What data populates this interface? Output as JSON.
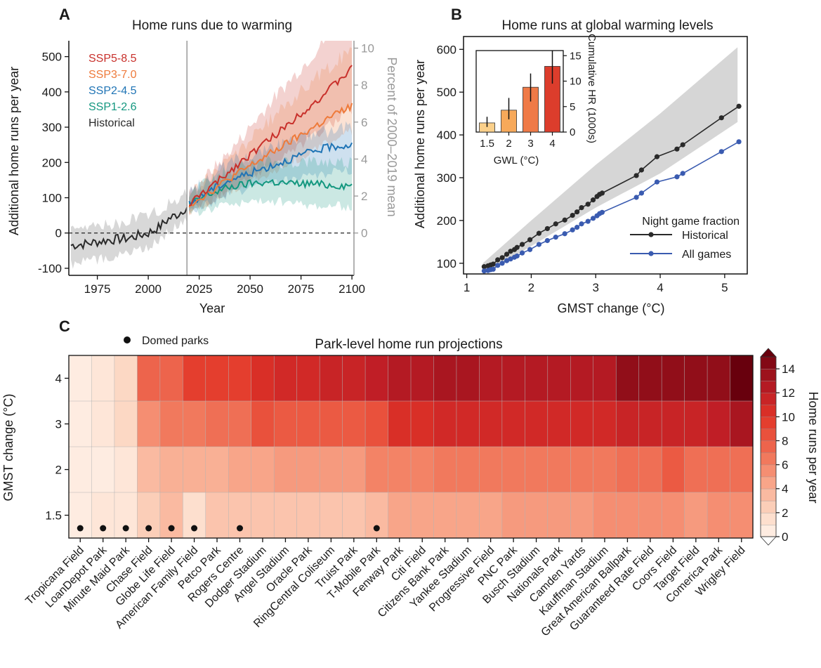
{
  "colors": {
    "ssp585": "#c8302b",
    "ssp370": "#ee7a3a",
    "ssp245": "#1f74b5",
    "ssp126": "#13977f",
    "historical": "#2a2a2a",
    "all_games": "#3a5bb0",
    "band_grey": "#d4d4d4",
    "axis_grey": "#999999"
  },
  "panel_a": {
    "letter": "A",
    "chart_data": {
      "type": "line",
      "title": "Home runs due to warming",
      "xlabel": "Year",
      "ylabel": "Additional home runs per year",
      "ylabel_right": "Percent of 2000–2019 mean",
      "x_ticks": [
        1975,
        2000,
        2025,
        2050,
        2075,
        2100
      ],
      "y_ticks": [
        -100,
        0,
        100,
        200,
        300,
        400,
        500
      ],
      "y_ticks_right": [
        0,
        2,
        4,
        6,
        8,
        10
      ],
      "xlim": [
        1961,
        2101
      ],
      "ylim": [
        -120,
        545
      ],
      "right_ylim": [
        -2.29,
        10.4
      ],
      "divider_year": 2019,
      "legend_position": "top-left",
      "series": [
        {
          "key": "ssp585",
          "name": "SSP5-8.5",
          "anchors": [
            [
              2020,
              80
            ],
            [
              2025,
              105
            ],
            [
              2035,
              150
            ],
            [
              2045,
              200
            ],
            [
              2055,
              245
            ],
            [
              2065,
              290
            ],
            [
              2075,
              340
            ],
            [
              2085,
              385
            ],
            [
              2095,
              440
            ],
            [
              2100,
              465
            ]
          ],
          "band_lo": [
            [
              2020,
              60
            ],
            [
              2040,
              120
            ],
            [
              2060,
              190
            ],
            [
              2080,
              270
            ],
            [
              2100,
              350
            ]
          ],
          "band_hi": [
            [
              2020,
              110
            ],
            [
              2040,
              230
            ],
            [
              2060,
              370
            ],
            [
              2080,
              500
            ],
            [
              2100,
              640
            ]
          ]
        },
        {
          "key": "ssp370",
          "name": "SSP3-7.0",
          "anchors": [
            [
              2020,
              80
            ],
            [
              2030,
              115
            ],
            [
              2040,
              155
            ],
            [
              2050,
              190
            ],
            [
              2060,
              225
            ],
            [
              2070,
              260
            ],
            [
              2080,
              295
            ],
            [
              2090,
              330
            ],
            [
              2100,
              360
            ]
          ],
          "band_lo": [
            [
              2020,
              60
            ],
            [
              2040,
              120
            ],
            [
              2060,
              170
            ],
            [
              2080,
              230
            ],
            [
              2100,
              290
            ]
          ],
          "band_hi": [
            [
              2020,
              110
            ],
            [
              2040,
              210
            ],
            [
              2060,
              320
            ],
            [
              2080,
              430
            ],
            [
              2100,
              520
            ]
          ]
        },
        {
          "key": "ssp245",
          "name": "SSP2-4.5",
          "anchors": [
            [
              2020,
              80
            ],
            [
              2030,
              120
            ],
            [
              2040,
              150
            ],
            [
              2050,
              170
            ],
            [
              2060,
              190
            ],
            [
              2070,
              210
            ],
            [
              2080,
              230
            ],
            [
              2090,
              245
            ],
            [
              2100,
              250
            ]
          ],
          "band_lo": [
            [
              2020,
              60
            ],
            [
              2040,
              110
            ],
            [
              2060,
              140
            ],
            [
              2080,
              160
            ],
            [
              2100,
              180
            ]
          ],
          "band_hi": [
            [
              2020,
              110
            ],
            [
              2040,
              200
            ],
            [
              2060,
              240
            ],
            [
              2080,
              280
            ],
            [
              2100,
              300
            ]
          ]
        },
        {
          "key": "ssp126",
          "name": "SSP1-2.6",
          "anchors": [
            [
              2020,
              80
            ],
            [
              2030,
              110
            ],
            [
              2040,
              130
            ],
            [
              2050,
              140
            ],
            [
              2060,
              145
            ],
            [
              2070,
              140
            ],
            [
              2080,
              140
            ],
            [
              2090,
              135
            ],
            [
              2100,
              135
            ]
          ],
          "band_lo": [
            [
              2020,
              55
            ],
            [
              2040,
              85
            ],
            [
              2060,
              90
            ],
            [
              2080,
              80
            ],
            [
              2100,
              75
            ]
          ],
          "band_hi": [
            [
              2020,
              110
            ],
            [
              2040,
              180
            ],
            [
              2060,
              200
            ],
            [
              2080,
              200
            ],
            [
              2100,
              200
            ]
          ]
        },
        {
          "key": "historical",
          "name": "Historical",
          "anchors": [
            [
              1962,
              -35
            ],
            [
              1970,
              -30
            ],
            [
              1980,
              -20
            ],
            [
              1990,
              -15
            ],
            [
              2000,
              0
            ],
            [
              2005,
              15
            ],
            [
              2010,
              40
            ],
            [
              2015,
              55
            ],
            [
              2019,
              75
            ]
          ],
          "band_lo": [
            [
              1962,
              -90
            ],
            [
              1980,
              -70
            ],
            [
              2000,
              -40
            ],
            [
              2019,
              40
            ]
          ],
          "band_hi": [
            [
              1962,
              0
            ],
            [
              1980,
              20
            ],
            [
              2000,
              50
            ],
            [
              2019,
              110
            ]
          ]
        }
      ]
    }
  },
  "panel_b": {
    "letter": "B",
    "chart_data": {
      "type": "line",
      "title": "Home runs at global warming levels",
      "xlabel": "GMST change (°C)",
      "ylabel": "Additional home runs per year",
      "x_ticks": [
        1,
        2,
        3,
        4,
        5
      ],
      "y_ticks": [
        100,
        200,
        300,
        400,
        500,
        600
      ],
      "xlim": [
        0.95,
        5.35
      ],
      "ylim": [
        75,
        630
      ],
      "legend_title": "Night game fraction",
      "legend_position": "bottom-right",
      "band": {
        "lo": [
          [
            1.25,
            75
          ],
          [
            2,
            140
          ],
          [
            3,
            230
          ],
          [
            4,
            310
          ],
          [
            5.2,
            430
          ]
        ],
        "hi": [
          [
            1.25,
            100
          ],
          [
            2,
            200
          ],
          [
            3,
            330
          ],
          [
            4,
            450
          ],
          [
            5.2,
            605
          ]
        ]
      },
      "series": [
        {
          "key": "historical",
          "name": "Historical",
          "x": [
            1.27,
            1.33,
            1.37,
            1.41,
            1.48,
            1.55,
            1.62,
            1.68,
            1.74,
            1.78,
            1.86,
            1.98,
            2.12,
            2.25,
            2.38,
            2.52,
            2.64,
            2.71,
            2.78,
            2.88,
            2.96,
            3.02,
            3.06,
            3.1,
            3.63,
            3.71,
            3.95,
            4.26,
            4.35,
            4.95,
            5.22
          ],
          "y": [
            92,
            94,
            96,
            98,
            108,
            113,
            121,
            128,
            132,
            137,
            144,
            155,
            170,
            181,
            192,
            201,
            212,
            220,
            230,
            238,
            248,
            256,
            261,
            264,
            305,
            318,
            349,
            367,
            377,
            440,
            467
          ]
        },
        {
          "key": "all_games",
          "name": "All games",
          "x": [
            1.27,
            1.33,
            1.37,
            1.41,
            1.48,
            1.55,
            1.62,
            1.68,
            1.74,
            1.78,
            1.86,
            1.98,
            2.12,
            2.25,
            2.38,
            2.52,
            2.64,
            2.71,
            2.78,
            2.88,
            2.96,
            3.02,
            3.06,
            3.1,
            3.63,
            3.71,
            3.95,
            4.26,
            4.35,
            4.95,
            5.22
          ],
          "y": [
            82,
            83,
            85,
            86,
            95,
            100,
            106,
            110,
            114,
            117,
            124,
            132,
            144,
            153,
            161,
            169,
            178,
            184,
            192,
            198,
            205,
            211,
            216,
            219,
            254,
            264,
            290,
            302,
            310,
            361,
            384
          ]
        }
      ],
      "inset": {
        "type": "bar",
        "xlabel": "GWL (°C)",
        "ylabel": "Cumulative HR (1000s)",
        "categories": [
          "1.5",
          "2",
          "3",
          "4"
        ],
        "values": [
          1.8,
          4.3,
          8.8,
          12.9
        ],
        "err_lo": [
          1.0,
          2.5,
          6.0,
          9.5
        ],
        "err_hi": [
          3.0,
          6.7,
          11.5,
          16.0
        ],
        "colors": [
          "#fbd08a",
          "#f7a95a",
          "#ef7a47",
          "#dc3d2c"
        ],
        "y_ticks": [
          0,
          5,
          10,
          15
        ],
        "ylim": [
          0,
          16
        ]
      }
    }
  },
  "panel_c": {
    "letter": "C",
    "chart_data": {
      "type": "heatmap",
      "title": "Park-level home run projections",
      "ylabel": "GMST change (°C)",
      "colorbar_label": "Home runs per year",
      "colorbar_ticks": [
        0,
        2,
        4,
        6,
        8,
        10,
        12,
        14
      ],
      "legend_label": "Domed parks",
      "rows": [
        "4",
        "3",
        "2",
        "1.5"
      ],
      "columns": [
        "Tropicana Field",
        "LoanDepot Park",
        "Minute Maid Park",
        "Chase Field",
        "Globe Life Field",
        "American Family Field",
        "Petco Park",
        "Rogers Centre",
        "Dodger Stadium",
        "Angel Stadium",
        "Oracle Park",
        "RingCentral Coliseum",
        "Truist Park",
        "T-Mobile Park",
        "Fenway Park",
        "Citi Field",
        "Citizens Bank Park",
        "Yankee Stadium",
        "Progressive Field",
        "PNC Park",
        "Busch Stadium",
        "Nationals Park",
        "Camden Yards",
        "Kauffman Stadium",
        "Great American Ballpark",
        "Guaranteed Rate Field",
        "Coors Field",
        "Target Field",
        "Comerica Park",
        "Wrigley Field"
      ],
      "domed": [
        true,
        true,
        true,
        true,
        true,
        true,
        false,
        true,
        false,
        false,
        false,
        false,
        false,
        true,
        false,
        false,
        false,
        false,
        false,
        false,
        false,
        false,
        false,
        false,
        false,
        false,
        false,
        false,
        false,
        false
      ],
      "values": [
        [
          0.5,
          1.0,
          2.0,
          7.5,
          7.5,
          9.5,
          9.5,
          9.5,
          10.5,
          11.0,
          11.0,
          11.5,
          11.5,
          12.0,
          12.5,
          12.5,
          13.0,
          13.0,
          12.5,
          12.5,
          12.5,
          12.5,
          12.5,
          12.5,
          14.0,
          14.0,
          14.0,
          14.0,
          14.0,
          15.5
        ],
        [
          0.5,
          1.0,
          2.0,
          5.5,
          6.5,
          6.5,
          7.0,
          7.0,
          8.5,
          8.0,
          8.0,
          8.0,
          8.0,
          8.5,
          10.5,
          10.5,
          11.0,
          11.0,
          11.0,
          11.0,
          11.0,
          11.0,
          11.0,
          11.0,
          11.5,
          11.5,
          11.5,
          11.5,
          12.0,
          13.0
        ],
        [
          0.5,
          0.5,
          1.0,
          3.5,
          4.0,
          4.0,
          4.0,
          4.5,
          4.5,
          5.0,
          5.0,
          5.0,
          5.0,
          6.0,
          6.0,
          6.0,
          6.5,
          6.5,
          6.5,
          6.5,
          6.5,
          6.5,
          6.5,
          6.5,
          7.0,
          7.0,
          8.0,
          7.0,
          7.0,
          7.0
        ],
        [
          0.5,
          1.0,
          1.0,
          2.5,
          3.5,
          1.5,
          3.0,
          3.0,
          3.0,
          3.0,
          3.0,
          3.0,
          3.0,
          3.5,
          4.5,
          4.5,
          4.5,
          4.5,
          4.5,
          5.0,
          5.0,
          5.0,
          5.0,
          5.5,
          5.5,
          5.5,
          5.5,
          5.0,
          5.5,
          5.5
        ]
      ]
    }
  }
}
